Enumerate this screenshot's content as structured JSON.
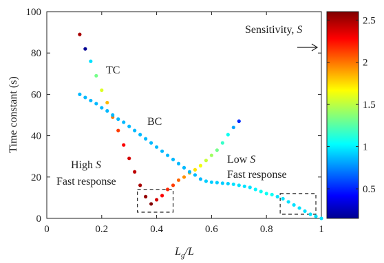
{
  "chart_data": {
    "type": "scatter",
    "xlabel_base": "L",
    "xlabel_sub": "g",
    "xlabel_tail": "/L",
    "ylabel": "Time constant (s)",
    "xlim": [
      0,
      1
    ],
    "ylim": [
      0,
      100
    ],
    "xticks": [
      "0",
      "0.2",
      "0.4",
      "0.6",
      "0.8",
      "1"
    ],
    "yticks": [
      "0",
      "20",
      "40",
      "60",
      "80",
      "100"
    ],
    "grid": false,
    "colorbar": {
      "label_text": "Sensitivity, ",
      "label_symbol": "S",
      "range": [
        0.15,
        2.6
      ],
      "ticks": [
        "0.5",
        "1",
        "1.5",
        "2",
        "2.5"
      ]
    },
    "annotations": {
      "tc": "TC",
      "bc": "BC",
      "high_line1": "High ",
      "high_symbol": "S",
      "high_line2": "Fast response",
      "low_line1": "Low ",
      "low_symbol": "S",
      "low_line2": "Fast response"
    },
    "series": [
      {
        "points": [
          [
            0.12,
            89,
            2.5
          ],
          [
            0.14,
            82,
            0.2
          ],
          [
            0.16,
            76,
            1.0
          ],
          [
            0.18,
            69,
            1.35
          ],
          [
            0.2,
            62,
            1.6
          ],
          [
            0.22,
            56,
            1.85
          ],
          [
            0.24,
            49,
            2.0
          ],
          [
            0.26,
            42.5,
            2.15
          ],
          [
            0.28,
            35.5,
            2.3
          ],
          [
            0.3,
            29,
            2.4
          ],
          [
            0.32,
            22.5,
            2.45
          ],
          [
            0.34,
            16,
            2.5
          ],
          [
            0.36,
            10.5,
            2.55
          ],
          [
            0.38,
            7,
            2.6
          ],
          [
            0.4,
            9,
            2.4
          ],
          [
            0.42,
            11,
            2.3
          ],
          [
            0.44,
            14,
            2.2
          ],
          [
            0.46,
            16,
            2.15
          ],
          [
            0.48,
            18.5,
            2.05
          ],
          [
            0.5,
            20,
            1.95
          ],
          [
            0.52,
            22,
            1.85
          ],
          [
            0.54,
            23.5,
            1.75
          ],
          [
            0.56,
            25.5,
            1.65
          ],
          [
            0.58,
            28,
            1.55
          ],
          [
            0.6,
            30.5,
            1.45
          ],
          [
            0.62,
            33,
            1.35
          ],
          [
            0.64,
            36.5,
            1.2
          ],
          [
            0.66,
            40.5,
            1.1
          ],
          [
            0.68,
            44,
            0.85
          ],
          [
            0.7,
            47,
            0.55
          ]
        ]
      },
      {
        "points": [
          [
            0.12,
            60,
            0.9
          ],
          [
            0.14,
            58.5,
            0.9
          ],
          [
            0.16,
            57,
            0.9
          ],
          [
            0.18,
            55.5,
            0.9
          ],
          [
            0.2,
            53.5,
            0.9
          ],
          [
            0.22,
            52,
            0.9
          ],
          [
            0.24,
            50,
            0.9
          ],
          [
            0.26,
            48,
            0.9
          ],
          [
            0.28,
            46.5,
            0.9
          ],
          [
            0.3,
            44.5,
            0.9
          ],
          [
            0.32,
            42.5,
            0.9
          ],
          [
            0.34,
            40.5,
            0.9
          ],
          [
            0.36,
            38.5,
            0.9
          ],
          [
            0.38,
            36.5,
            0.9
          ],
          [
            0.4,
            34.5,
            0.9
          ],
          [
            0.42,
            32.5,
            0.9
          ],
          [
            0.44,
            30.5,
            0.9
          ],
          [
            0.46,
            28.5,
            0.9
          ],
          [
            0.48,
            26.5,
            0.9
          ],
          [
            0.5,
            24.5,
            0.9
          ],
          [
            0.52,
            22.5,
            0.9
          ],
          [
            0.54,
            21,
            0.9
          ],
          [
            0.56,
            19,
            0.9
          ],
          [
            0.58,
            18,
            0.95
          ],
          [
            0.6,
            17.5,
            0.95
          ],
          [
            0.62,
            17.3,
            0.95
          ],
          [
            0.64,
            17,
            0.95
          ],
          [
            0.66,
            16.8,
            0.95
          ],
          [
            0.68,
            16.5,
            1.0
          ],
          [
            0.7,
            16,
            1.0
          ],
          [
            0.72,
            15.5,
            1.0
          ],
          [
            0.74,
            15,
            1.0
          ],
          [
            0.76,
            14,
            1.05
          ],
          [
            0.78,
            13,
            1.1
          ],
          [
            0.8,
            12,
            1.1
          ],
          [
            0.82,
            11.5,
            1.1
          ],
          [
            0.84,
            10.5,
            1.0
          ],
          [
            0.86,
            9.5,
            1.0
          ],
          [
            0.88,
            8,
            1.0
          ],
          [
            0.9,
            6.5,
            1.0
          ],
          [
            0.92,
            5,
            1.0
          ],
          [
            0.94,
            3.5,
            1.0
          ],
          [
            0.96,
            2,
            1.0
          ],
          [
            0.98,
            1,
            1.0
          ],
          [
            1.0,
            0,
            1.0
          ]
        ]
      }
    ],
    "highlight_boxes": [
      {
        "x": [
          0.33,
          0.46
        ],
        "y": [
          3,
          14
        ]
      },
      {
        "x": [
          0.85,
          0.98
        ],
        "y": [
          2,
          12
        ]
      }
    ]
  }
}
